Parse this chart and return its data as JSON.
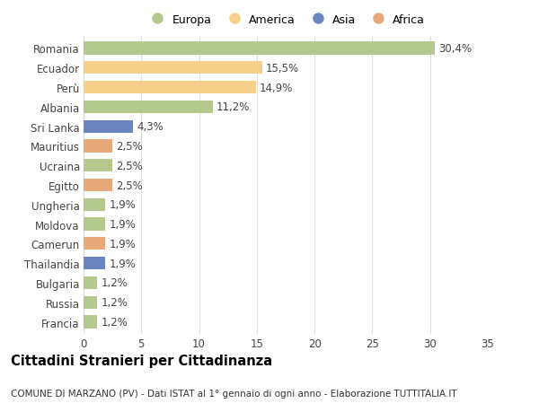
{
  "countries": [
    "Romania",
    "Ecuador",
    "Perù",
    "Albania",
    "Sri Lanka",
    "Mauritius",
    "Ucraina",
    "Egitto",
    "Ungheria",
    "Moldova",
    "Camerun",
    "Thailandia",
    "Bulgaria",
    "Russia",
    "Francia"
  ],
  "values": [
    30.4,
    15.5,
    14.9,
    11.2,
    4.3,
    2.5,
    2.5,
    2.5,
    1.9,
    1.9,
    1.9,
    1.9,
    1.2,
    1.2,
    1.2
  ],
  "labels": [
    "30,4%",
    "15,5%",
    "14,9%",
    "11,2%",
    "4,3%",
    "2,5%",
    "2,5%",
    "2,5%",
    "1,9%",
    "1,9%",
    "1,9%",
    "1,9%",
    "1,2%",
    "1,2%",
    "1,2%"
  ],
  "continents": [
    "Europa",
    "America",
    "America",
    "Europa",
    "Asia",
    "Africa",
    "Europa",
    "Africa",
    "Europa",
    "Europa",
    "Africa",
    "Asia",
    "Europa",
    "Europa",
    "Europa"
  ],
  "continent_colors": {
    "Europa": "#b5c98e",
    "America": "#f5d08b",
    "Asia": "#6b85c0",
    "Africa": "#e8a97a"
  },
  "legend_order": [
    "Europa",
    "America",
    "Asia",
    "Africa"
  ],
  "legend_colors": [
    "#b5c98e",
    "#f5d08b",
    "#6b85c0",
    "#e8a97a"
  ],
  "title": "Cittadini Stranieri per Cittadinanza",
  "subtitle": "COMUNE DI MARZANO (PV) - Dati ISTAT al 1° gennaio di ogni anno - Elaborazione TUTTITALIA.IT",
  "xlim": [
    0,
    35
  ],
  "xticks": [
    0,
    5,
    10,
    15,
    20,
    25,
    30,
    35
  ],
  "background_color": "#ffffff",
  "grid_color": "#dddddd",
  "bar_height": 0.65,
  "label_fontsize": 8.5,
  "tick_fontsize": 8.5,
  "title_fontsize": 10.5,
  "subtitle_fontsize": 7.5,
  "legend_fontsize": 9
}
